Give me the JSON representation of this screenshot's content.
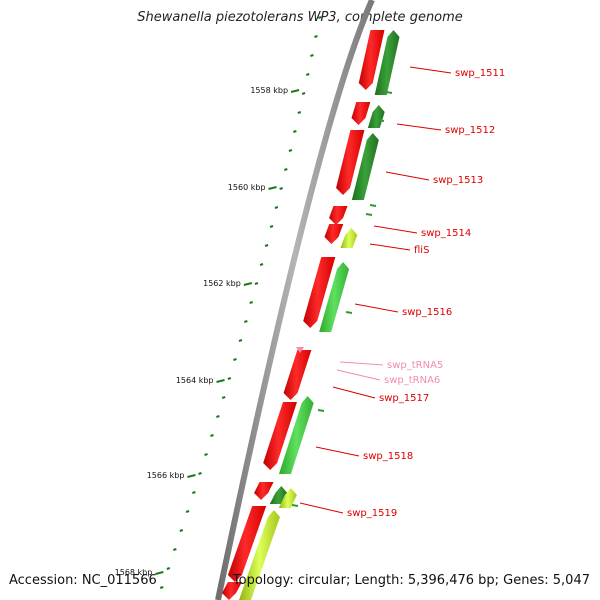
{
  "title": "Shewanella piezotolerans WP3, complete genome",
  "footer": {
    "accession": "Accession: NC_011566",
    "topology": "Topology: circular; Length: 5,396,476 bp; Genes: 5,047"
  },
  "ticks": [
    "1558 kbp",
    "1560 kbp",
    "1562 kbp",
    "1564 kbp",
    "1566 kbp",
    "1568 kbp"
  ],
  "gene_labels": [
    {
      "label": "swp_1511",
      "kind": "cds"
    },
    {
      "label": "swp_1512",
      "kind": "cds"
    },
    {
      "label": "swp_1513",
      "kind": "cds"
    },
    {
      "label": "swp_1514",
      "kind": "cds"
    },
    {
      "label": "fliS",
      "kind": "cds"
    },
    {
      "label": "swp_1516",
      "kind": "cds"
    },
    {
      "label": "swp_tRNA5",
      "kind": "trna"
    },
    {
      "label": "swp_tRNA6",
      "kind": "trna"
    },
    {
      "label": "swp_1517",
      "kind": "cds"
    },
    {
      "label": "swp_1518",
      "kind": "cds"
    },
    {
      "label": "swp_1519",
      "kind": "cds"
    }
  ],
  "colors": {
    "backbone": "#8c8c8c",
    "cds_label": "#dd0000",
    "trna_label": "#f08cb4",
    "forward_strand": "#ee0000",
    "reverse_strand": "#2f9a2f",
    "reverse_light": "#44cc44",
    "cog_yellow": "#c6ee22",
    "tick": "#1a7a1a"
  }
}
